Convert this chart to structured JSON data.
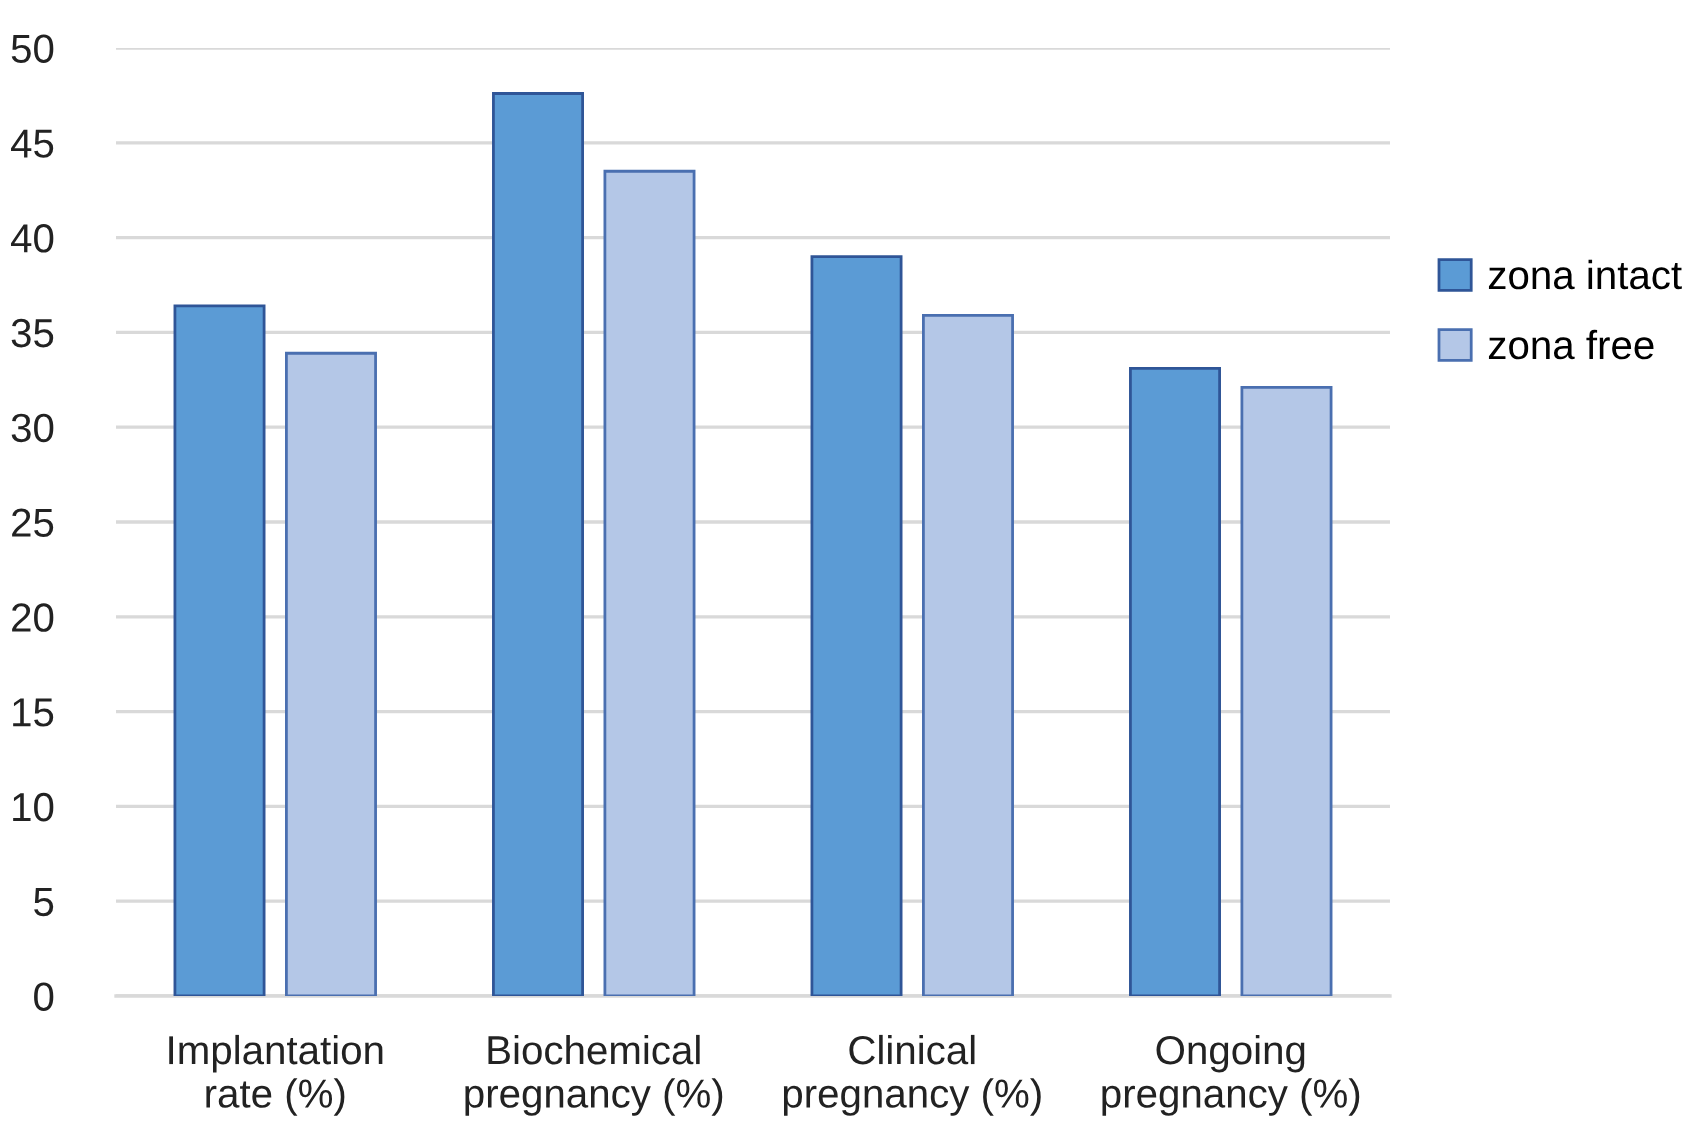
{
  "chart_data": {
    "type": "bar",
    "categories": [
      "Implantation\nrate (%)",
      "Biochemical\npregnancy (%)",
      "Clinical\npregnancy (%)",
      "Ongoing\npregnancy (%)"
    ],
    "series": [
      {
        "name": "zona intact",
        "color": "#5b9bd5",
        "values": [
          36.4,
          47.6,
          39.0,
          33.1
        ]
      },
      {
        "name": "zona free",
        "color": "#b4c7e7",
        "values": [
          33.9,
          43.5,
          35.9,
          32.1
        ]
      }
    ],
    "ylim": [
      0,
      50
    ],
    "yticks": [
      0,
      5,
      10,
      15,
      20,
      25,
      30,
      35,
      40,
      45,
      50
    ],
    "grid": "y",
    "legend": "right"
  }
}
